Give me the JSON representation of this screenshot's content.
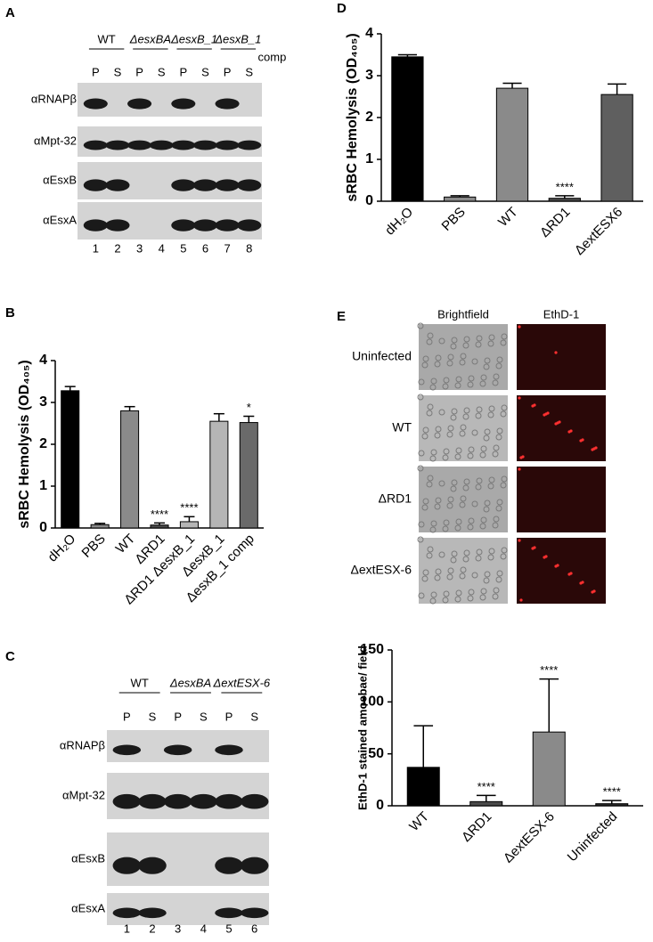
{
  "blot_a": {
    "label": "A",
    "groups": [
      {
        "name": "WT",
        "lanes": [
          "P",
          "S"
        ]
      },
      {
        "name": "ΔesxBA",
        "lanes": [
          "P",
          "S"
        ]
      },
      {
        "name": "ΔesxB_1",
        "lanes": [
          "P",
          "S"
        ]
      },
      {
        "name": "ΔesxB_1",
        "note": "comp",
        "lanes": [
          "P",
          "S"
        ]
      }
    ],
    "antibodies": [
      "αRNAPβ",
      "αMpt-32",
      "αEsxB",
      "αEsxA"
    ],
    "lane_numbers": [
      "1",
      "2",
      "3",
      "4",
      "5",
      "6",
      "7",
      "8"
    ]
  },
  "blot_c": {
    "label": "C",
    "groups": [
      {
        "name": "WT",
        "lanes": [
          "P",
          "S"
        ]
      },
      {
        "name": "ΔesxBA",
        "lanes": [
          "P",
          "S"
        ]
      },
      {
        "name": "ΔextESX-6",
        "lanes": [
          "P",
          "S"
        ]
      }
    ],
    "antibodies": [
      "αRNAPβ",
      "αMpt-32",
      "αEsxB",
      "αEsxA"
    ],
    "lane_numbers": [
      "1",
      "2",
      "3",
      "4",
      "5",
      "6"
    ]
  },
  "image_grid": {
    "label": "E",
    "columns": [
      "Brightfield",
      "EthD-1"
    ],
    "rows": [
      "Uninfected",
      "WT",
      "ΔRD1",
      "ΔextESX-6"
    ]
  },
  "chart_data": [
    {
      "type": "bar",
      "panel": "B",
      "y_label": "sRBC Hemolysis (OD₄₀₅)",
      "categories": [
        "dH₂O",
        "PBS",
        "WT",
        "ΔRD1",
        "ΔRD1 ΔesxB_1",
        "ΔesxB_1",
        "ΔesxB_1 comp"
      ],
      "values": [
        3.28,
        0.08,
        2.8,
        0.07,
        0.15,
        2.55,
        2.52
      ],
      "errors": [
        0.1,
        0.03,
        0.1,
        0.05,
        0.12,
        0.18,
        0.15
      ],
      "colors": [
        "#000000",
        "#8a8a8a",
        "#8a8a8a",
        "#4a4a4a",
        "#b5b5b5",
        "#b5b5b5",
        "#6a6a6a"
      ],
      "annotations": [
        {
          "text": "****",
          "category": "ΔRD1"
        },
        {
          "text": "****",
          "category": "ΔRD1 ΔesxB_1"
        },
        {
          "text": "*",
          "category": "ΔesxB_1 comp"
        }
      ],
      "ylim": [
        0,
        4
      ],
      "yticks": [
        0,
        1,
        2,
        3,
        4
      ]
    },
    {
      "type": "bar",
      "panel": "D",
      "y_label": "sRBC Hemolysis (OD₄₀₅)",
      "categories": [
        "dH₂O",
        "PBS",
        "WT",
        "ΔRD1",
        "ΔextESX6"
      ],
      "values": [
        3.45,
        0.1,
        2.7,
        0.07,
        2.55
      ],
      "errors": [
        0.05,
        0.03,
        0.12,
        0.06,
        0.25
      ],
      "colors": [
        "#000000",
        "#8a8a8a",
        "#8a8a8a",
        "#4a4a4a",
        "#5f5f5f"
      ],
      "annotations": [
        {
          "text": "****",
          "category": "ΔRD1"
        }
      ],
      "ylim": [
        0,
        4
      ],
      "yticks": [
        0,
        1,
        2,
        3,
        4
      ]
    },
    {
      "type": "bar",
      "panel": "",
      "y_label": "EthD-1 stained amoebae/ field",
      "categories": [
        "WT",
        "ΔRD1",
        "ΔextESX-6",
        "Uninfected"
      ],
      "values": [
        37,
        4,
        71,
        2
      ],
      "errors": [
        40,
        6,
        51,
        3
      ],
      "colors": [
        "#000000",
        "#4a4a4a",
        "#8a8a8a",
        "#2a2a2a"
      ],
      "annotations": [
        {
          "text": "****",
          "category": "ΔRD1"
        },
        {
          "text": "****",
          "category": "ΔextESX-6"
        },
        {
          "text": "****",
          "category": "Uninfected"
        }
      ],
      "ylim": [
        0,
        150
      ],
      "yticks": [
        0,
        50,
        100,
        150
      ]
    }
  ]
}
